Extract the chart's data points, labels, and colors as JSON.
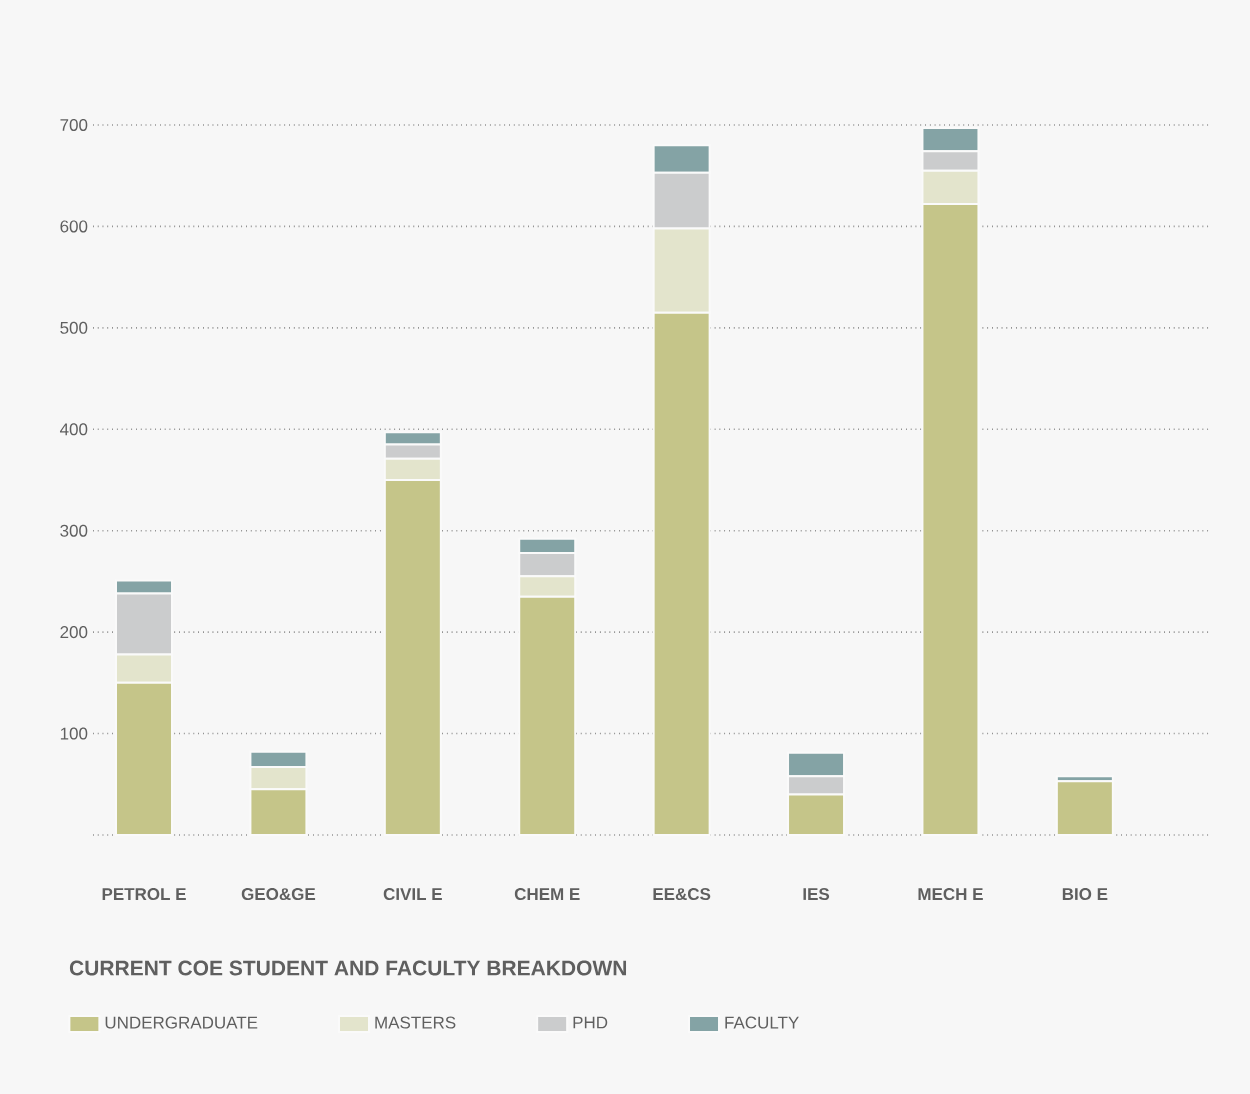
{
  "chart_data": {
    "type": "bar",
    "stacked": true,
    "title": "CURRENT COE STUDENT AND FACULTY BREAKDOWN",
    "categories": [
      "PETROL E",
      "GEO&GE",
      "CIVIL E",
      "CHEM E",
      "EE&CS",
      "IES",
      "MECH E",
      "BIO E"
    ],
    "series": [
      {
        "name": "UNDERGRADUATE",
        "color": "#c5c589",
        "values": [
          150,
          45,
          350,
          235,
          515,
          40,
          622,
          53
        ]
      },
      {
        "name": "MASTERS",
        "color": "#e3e4cc",
        "values": [
          28,
          22,
          21,
          20,
          83,
          0,
          33,
          0
        ]
      },
      {
        "name": "PHD",
        "color": "#cbcccd",
        "values": [
          60,
          0,
          14,
          23,
          55,
          18,
          19,
          0
        ]
      },
      {
        "name": "FACULTY",
        "color": "#84a3a5",
        "values": [
          13,
          15,
          12,
          14,
          27,
          23,
          23,
          5
        ]
      }
    ],
    "ylim": [
      0,
      700
    ],
    "yticks": [
      {
        "value": 0,
        "label": null
      },
      100,
      200,
      300,
      400,
      500,
      600,
      700
    ],
    "grid": "y",
    "legend": "bottom"
  }
}
